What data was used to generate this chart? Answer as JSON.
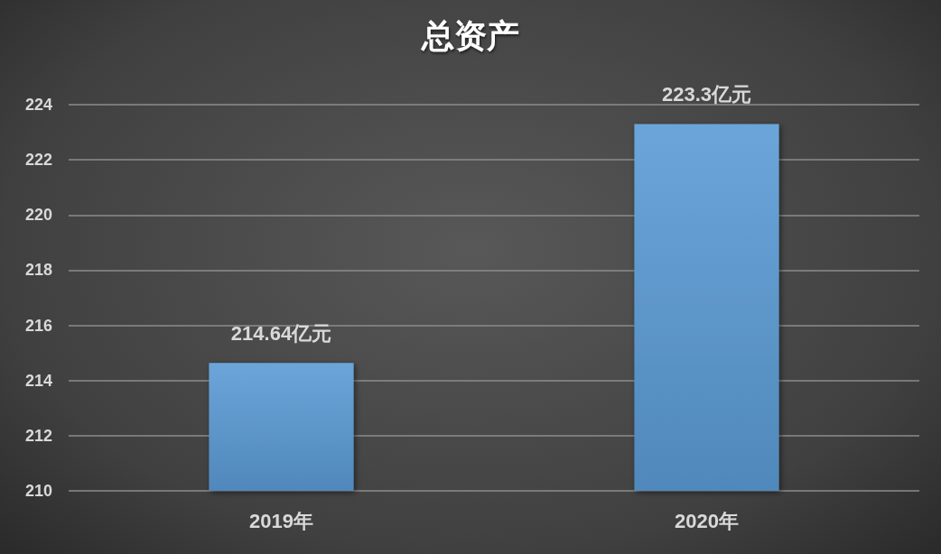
{
  "chart_data": {
    "type": "bar",
    "title": "总资产",
    "categories": [
      "2019年",
      "2020年"
    ],
    "series": [
      {
        "color": "#5b9bd5",
        "values": [
          214.64,
          223.3
        ],
        "value_labels": [
          "214.64亿元",
          "223.3亿元"
        ]
      }
    ],
    "ylim": [
      210,
      224
    ],
    "yticks": [
      210,
      212,
      214,
      216,
      218,
      220,
      222,
      224
    ],
    "grid": "y"
  }
}
